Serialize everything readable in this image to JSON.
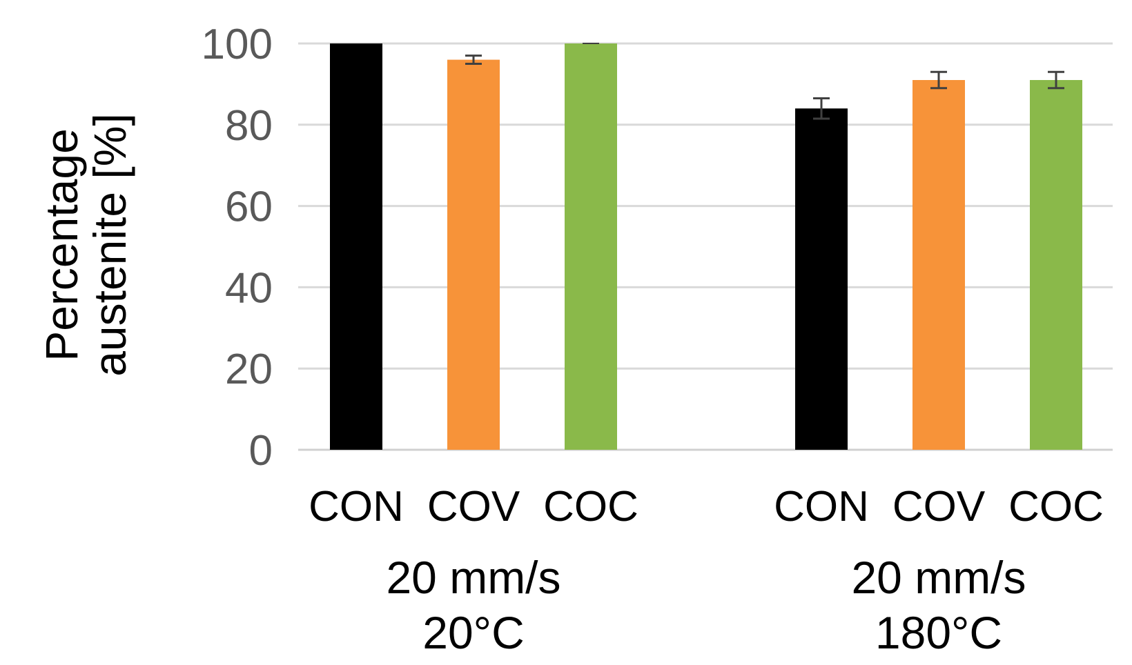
{
  "chart_data": {
    "type": "bar",
    "title": "",
    "xlabel": "",
    "ylabel": [
      "Percentage",
      "austenite [%]"
    ],
    "ylim": [
      0,
      100
    ],
    "yticks": [
      "0",
      "20",
      "40",
      "60",
      "80",
      "100"
    ],
    "grid": true,
    "legend": "none",
    "groups": [
      {
        "label": [
          "20 mm/s",
          "20°C"
        ],
        "bars": [
          {
            "category": "CON",
            "value": 100,
            "error": 0,
            "color": "#000000"
          },
          {
            "category": "COV",
            "value": 96,
            "error": 1,
            "color": "#f79339"
          },
          {
            "category": "COC",
            "value": 100,
            "error": 0,
            "color": "#8ab94a"
          }
        ]
      },
      {
        "label": [
          "20 mm/s",
          "180°C"
        ],
        "bars": [
          {
            "category": "CON",
            "value": 84,
            "error": 2.5,
            "color": "#000000"
          },
          {
            "category": "COV",
            "value": 91,
            "error": 2,
            "color": "#f79339"
          },
          {
            "category": "COC",
            "value": 91,
            "error": 2,
            "color": "#8ab94a"
          }
        ]
      }
    ]
  }
}
